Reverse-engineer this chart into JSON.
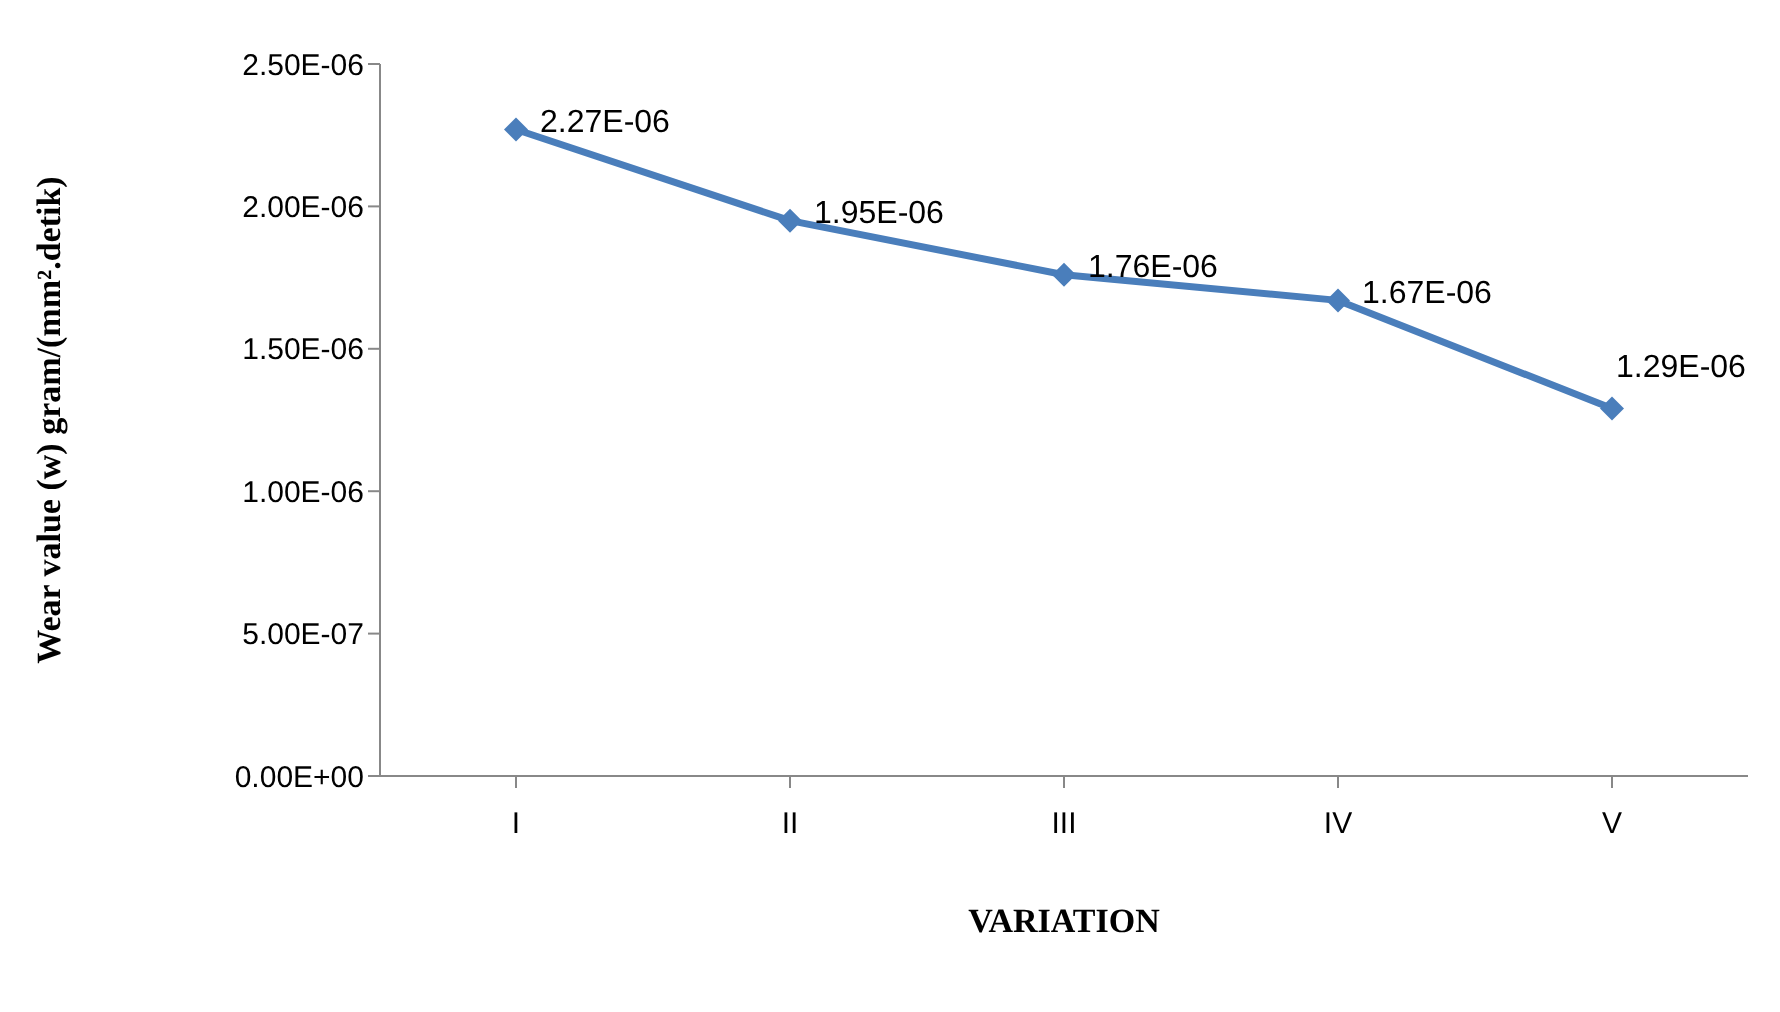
{
  "chart_data": {
    "type": "line",
    "xlabel": "VARIATION",
    "ylabel": "Wear value (w) gram/(mm².detik)",
    "categories": [
      "I",
      "II",
      "III",
      "IV",
      "V"
    ],
    "series": [
      {
        "color": "#4a7ebb",
        "values": [
          2.27e-06,
          1.95e-06,
          1.76e-06,
          1.67e-06,
          1.29e-06
        ],
        "value_labels": [
          "2.27E-06",
          "1.95E-06",
          "1.76E-06",
          "1.67E-06",
          "1.29E-06"
        ]
      }
    ],
    "ylim": [
      0,
      2.5e-06
    ],
    "yticks": [
      {
        "value": 0,
        "label": "0.00E+00"
      },
      {
        "value": 5e-07,
        "label": "5.00E-07"
      },
      {
        "value": 1e-06,
        "label": "1.00E-06"
      },
      {
        "value": 1.5e-06,
        "label": "1.50E-06"
      },
      {
        "value": 2e-06,
        "label": "2.00E-06"
      },
      {
        "value": 2.5e-06,
        "label": "2.50E-06"
      }
    ],
    "grid": false,
    "legend": false,
    "marker": "diamond",
    "line_style": "solid"
  }
}
